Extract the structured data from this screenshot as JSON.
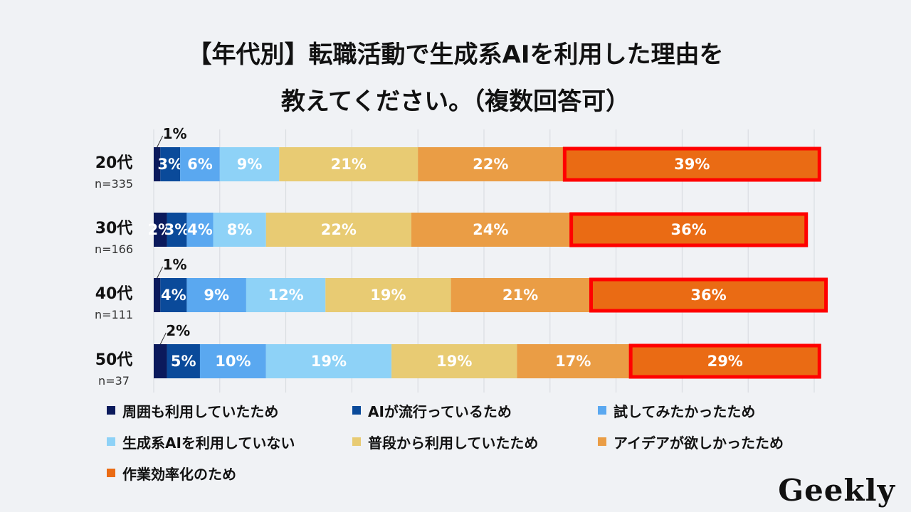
{
  "title_lines": [
    "【年代別】転職活動で生成系AIを利用した理由を",
    "教えてください。（複数回答可）"
  ],
  "brand": "Geekly",
  "colors": {
    "series": [
      "#0b1a5c",
      "#0a4a9a",
      "#5aa8f0",
      "#8ed2f7",
      "#e8cb73",
      "#ea9d45",
      "#ea6b14"
    ],
    "highlight": "#ff0000",
    "grid": "#d6d9de",
    "axis": "#9aa0a6"
  },
  "chart_data": {
    "type": "bar",
    "orientation": "horizontal",
    "stacked": true,
    "percent": true,
    "xlim": [
      0,
      100
    ],
    "grid": true,
    "legend_position": "bottom",
    "categories": [
      {
        "name": "20代",
        "n": "n=335"
      },
      {
        "name": "30代",
        "n": "n=166"
      },
      {
        "name": "40代",
        "n": "n=111"
      },
      {
        "name": "50代",
        "n": "n=37"
      }
    ],
    "series": [
      {
        "name": "周囲も利用していたため",
        "values": [
          1,
          2,
          1,
          2
        ],
        "labels": [
          "1%",
          "2%",
          "1%",
          "2%"
        ]
      },
      {
        "name": "AIが流行っているため",
        "values": [
          3,
          3,
          4,
          5
        ],
        "labels": [
          "3%",
          "3%",
          "4%",
          "5%"
        ]
      },
      {
        "name": "試してみたかったため",
        "values": [
          6,
          4,
          9,
          10
        ],
        "labels": [
          "6%",
          "4%",
          "9%",
          "10%"
        ]
      },
      {
        "name": "生成系AIを利用していない",
        "values": [
          9,
          8,
          12,
          19
        ],
        "labels": [
          "9%",
          "8%",
          "12%",
          "19%"
        ]
      },
      {
        "name": "普段から利用していたため",
        "values": [
          21,
          22,
          19,
          19
        ],
        "labels": [
          "21%",
          "22%",
          "19%",
          "19%"
        ]
      },
      {
        "name": "アイデアが欲しかったため",
        "values": [
          22,
          24,
          21,
          17
        ],
        "labels": [
          "22%",
          "24%",
          "21%",
          "17%"
        ]
      },
      {
        "name": "作業効率化のため",
        "values": [
          39,
          36,
          36,
          29
        ],
        "labels": [
          "39%",
          "36%",
          "36%",
          "29%"
        ]
      }
    ],
    "external_labels": [
      true,
      false,
      true,
      true
    ],
    "highlighted_series": 6
  }
}
